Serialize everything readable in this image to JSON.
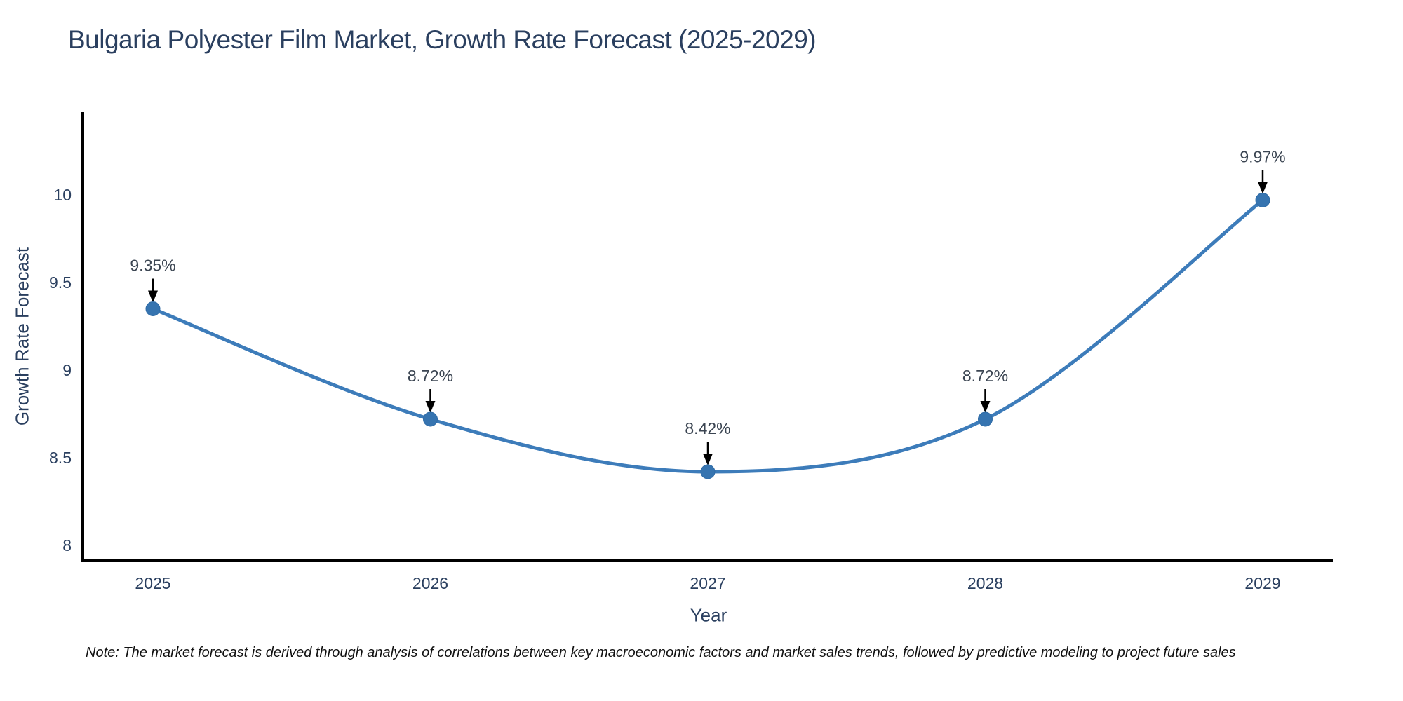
{
  "chart_data": {
    "type": "line",
    "title": "Bulgaria Polyester Film Market, Growth Rate Forecast (2025-2029)",
    "xlabel": "Year",
    "ylabel": "Growth Rate Forecast",
    "categories": [
      "2025",
      "2026",
      "2027",
      "2028",
      "2029"
    ],
    "values": [
      9.35,
      8.72,
      8.42,
      8.72,
      9.97
    ],
    "point_labels": [
      "9.35%",
      "8.72%",
      "8.42%",
      "8.72%",
      "9.97%"
    ],
    "ytick_values": [
      8,
      8.5,
      9,
      9.5,
      10
    ],
    "ytick_labels": [
      "8",
      "8.5",
      "9",
      "9.5",
      "10"
    ],
    "ylim": [
      7.9,
      10.5
    ],
    "grid": false,
    "legend": "none",
    "line_shape": "spline",
    "markers": true,
    "annotations_arrows": true,
    "colors": {
      "line": "#3d7cba",
      "marker": "#3674b0",
      "marker_edge": "#2f6ba6",
      "axis": "#000000",
      "text": "#2a3f5f",
      "annotation_text": "#3b4552",
      "arrow": "#000000"
    }
  },
  "note": "Note: The market forecast is derived through analysis of correlations between key macroeconomic factors and market sales trends, followed by predictive modeling to project future sales"
}
